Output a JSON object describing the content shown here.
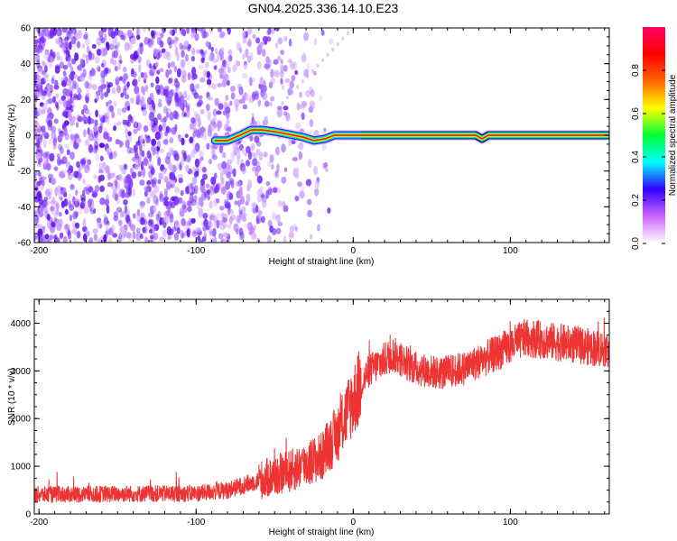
{
  "chart_data": [
    {
      "type": "heatmap",
      "title": "GN04.2025.336.14.10.E23",
      "xlabel": "Height of straight line (km)",
      "ylabel": "Frequency (Hz)",
      "xlim": [
        -203,
        163
      ],
      "ylim": [
        -60,
        60
      ],
      "xticks": [
        -200,
        -100,
        0,
        100
      ],
      "xtick_labels": [
        "-200",
        "-100",
        "0",
        "100"
      ],
      "yticks": [
        -60,
        -40,
        -20,
        0,
        20,
        40,
        60
      ],
      "ytick_labels": [
        "-60",
        "-40",
        "-20",
        "0",
        "20",
        "40",
        "60"
      ],
      "colorbar": {
        "label": "Normalized spectral amplitude",
        "range": [
          0,
          1
        ],
        "ticks": [
          0,
          0.2,
          0.4,
          0.6,
          0.8
        ],
        "tick_labels": [
          "0.0",
          "0.2",
          "0.4",
          "0.6",
          "0.8"
        ],
        "colors": [
          "#ffffff",
          "#cc66ff",
          "#3300ff",
          "#00ffff",
          "#00ff33",
          "#ffff00",
          "#ff6600",
          "#ff0000",
          "#ff0066"
        ]
      },
      "ridge": [
        {
          "x": -88,
          "y": -3
        },
        {
          "x": -80,
          "y": -3
        },
        {
          "x": -72,
          "y": 0
        },
        {
          "x": -65,
          "y": 3
        },
        {
          "x": -58,
          "y": 3
        },
        {
          "x": -50,
          "y": 2
        },
        {
          "x": -44,
          "y": 1
        },
        {
          "x": -38,
          "y": 0
        },
        {
          "x": -32,
          "y": -1
        },
        {
          "x": -25,
          "y": -3
        },
        {
          "x": -18,
          "y": -2
        },
        {
          "x": -12,
          "y": 0
        },
        {
          "x": -5,
          "y": 0
        },
        {
          "x": 0,
          "y": 0
        },
        {
          "x": 5,
          "y": 0
        },
        {
          "x": 50,
          "y": 0
        },
        {
          "x": 78,
          "y": 0
        },
        {
          "x": 82,
          "y": -2
        },
        {
          "x": 86,
          "y": 0
        },
        {
          "x": 163,
          "y": 0
        }
      ],
      "noise_region": {
        "x_from": -203,
        "x_to": -40
      }
    },
    {
      "type": "line",
      "xlabel": "Height of straight line (km)",
      "ylabel": "SNR (10 * v/v)",
      "xlim": [
        -203,
        163
      ],
      "ylim": [
        0,
        4500
      ],
      "xticks": [
        -200,
        -100,
        0,
        100
      ],
      "xtick_labels": [
        "-200",
        "-100",
        "0",
        "100"
      ],
      "yticks": [
        0,
        1000,
        2000,
        3000,
        4000
      ],
      "ytick_labels": [
        "0",
        "1000",
        "2000",
        "3000",
        "4000"
      ],
      "series": [
        {
          "name": "SNR",
          "color": "#ee3333",
          "trend": [
            {
              "x": -203,
              "y": 400
            },
            {
              "x": -150,
              "y": 420
            },
            {
              "x": -100,
              "y": 430
            },
            {
              "x": -80,
              "y": 500
            },
            {
              "x": -60,
              "y": 700
            },
            {
              "x": -40,
              "y": 900
            },
            {
              "x": -20,
              "y": 1200
            },
            {
              "x": -10,
              "y": 1700
            },
            {
              "x": 0,
              "y": 2400
            },
            {
              "x": 10,
              "y": 3000
            },
            {
              "x": 25,
              "y": 3350
            },
            {
              "x": 40,
              "y": 3050
            },
            {
              "x": 55,
              "y": 2950
            },
            {
              "x": 70,
              "y": 3050
            },
            {
              "x": 90,
              "y": 3350
            },
            {
              "x": 110,
              "y": 3700
            },
            {
              "x": 130,
              "y": 3600
            },
            {
              "x": 150,
              "y": 3500
            },
            {
              "x": 163,
              "y": 3450
            }
          ]
        }
      ]
    }
  ]
}
